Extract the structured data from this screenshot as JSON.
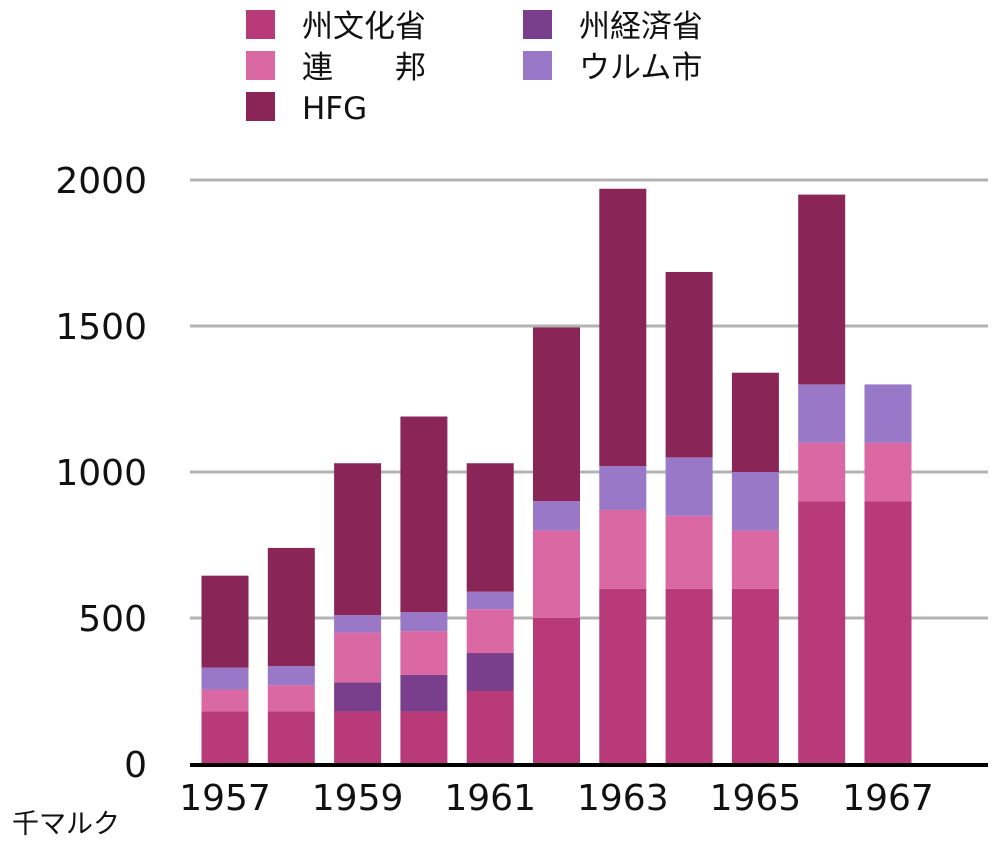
{
  "chart_data": {
    "type": "bar",
    "stacked": true,
    "title": "",
    "xlabel": "",
    "ylabel": "千マルク",
    "ylim": [
      0,
      2000
    ],
    "yticks": [
      0,
      500,
      1000,
      1500,
      2000
    ],
    "grid": true,
    "legend_position": "top",
    "categories": [
      "1957",
      "1958",
      "1959",
      "1960",
      "1961",
      "1962",
      "1963",
      "1964",
      "1965",
      "1966",
      "1967"
    ],
    "xtick_labels": [
      "1957",
      "",
      "1959",
      "",
      "1961",
      "",
      "1963",
      "",
      "1965",
      "",
      "1967"
    ],
    "series": [
      {
        "name": "州文化省",
        "color": "#B83A78",
        "values": [
          180,
          180,
          180,
          180,
          250,
          500,
          600,
          600,
          600,
          900,
          900
        ]
      },
      {
        "name": "州経済省",
        "color": "#7A3F8C",
        "values": [
          0,
          0,
          100,
          125,
          130,
          0,
          0,
          0,
          0,
          0,
          0
        ]
      },
      {
        "name": "連　　邦",
        "color": "#DA68A2",
        "values": [
          75,
          90,
          170,
          150,
          150,
          300,
          270,
          250,
          200,
          200,
          200
        ]
      },
      {
        "name": "ウルム市",
        "color": "#9A78C8",
        "values": [
          75,
          65,
          60,
          65,
          60,
          100,
          150,
          200,
          200,
          200,
          200
        ]
      },
      {
        "name": "HFG",
        "color": "#8A2558",
        "values": [
          315,
          405,
          520,
          670,
          440,
          595,
          950,
          635,
          340,
          650,
          0
        ]
      }
    ]
  }
}
